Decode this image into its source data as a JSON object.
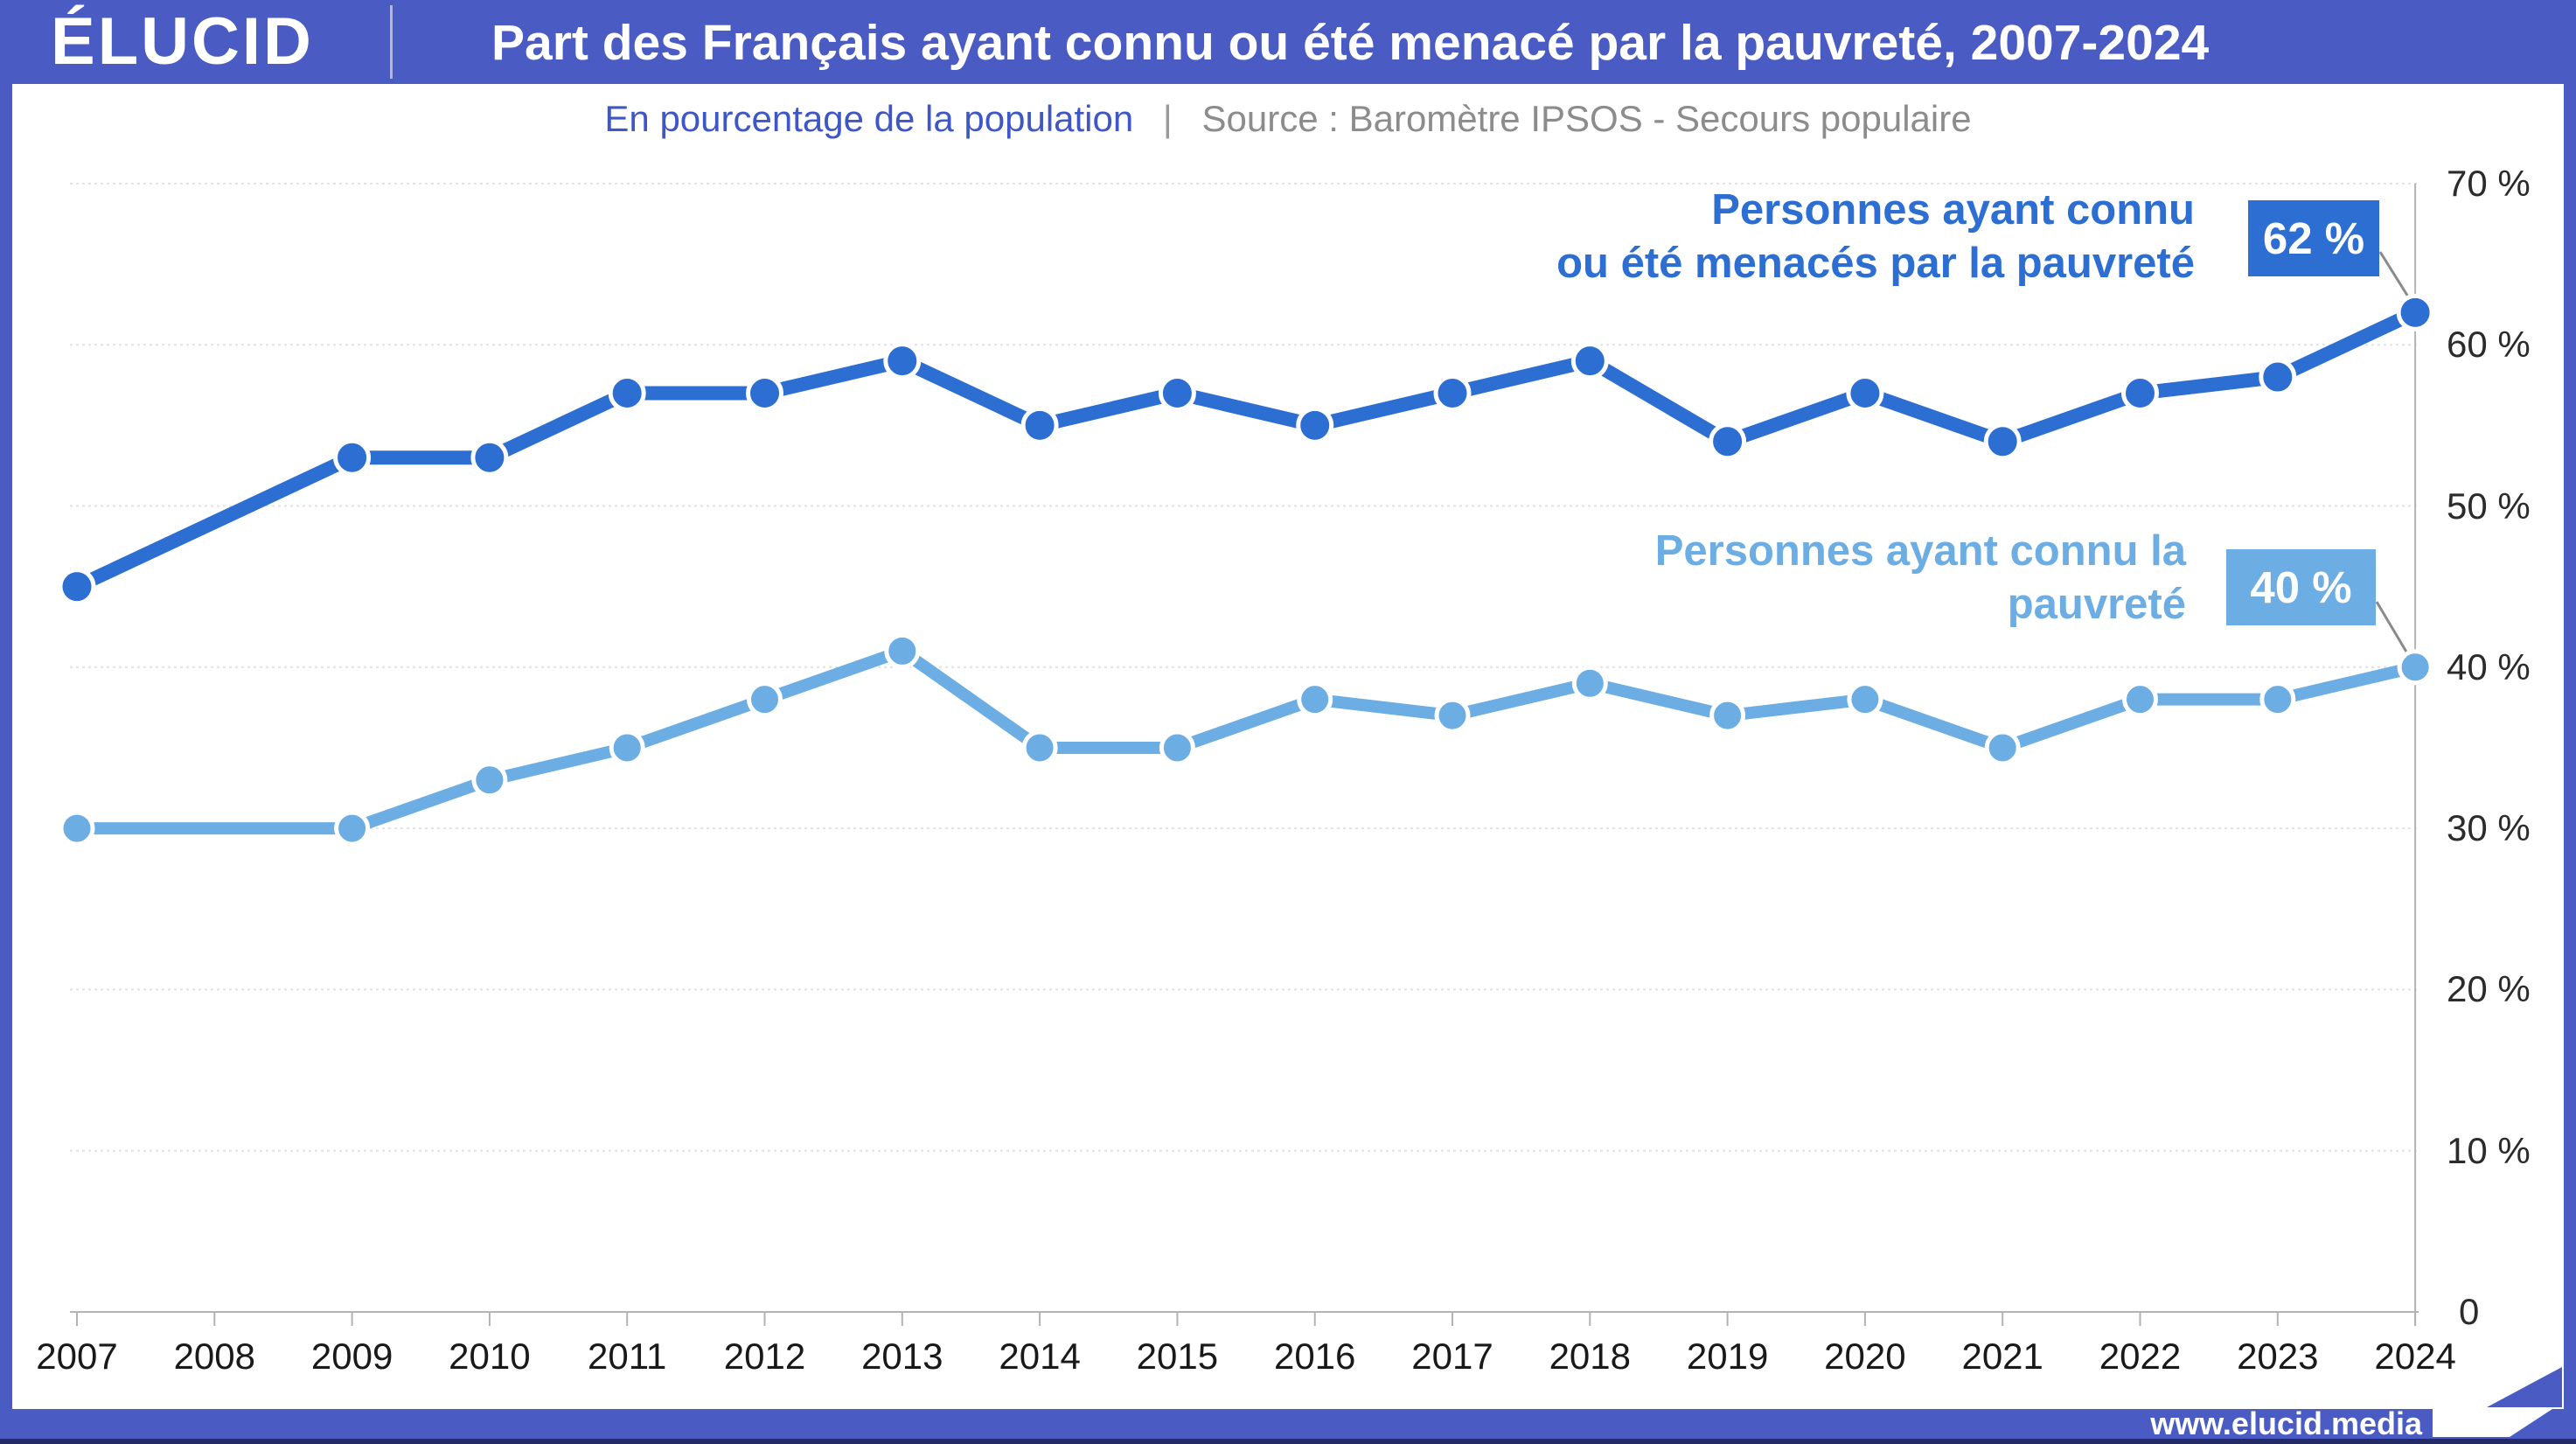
{
  "header": {
    "logo_text": "ÉLUCID",
    "title": "Part des Français ayant connu ou été menacé par la pauvreté, 2007-2024"
  },
  "subtitle": {
    "unit_label": "En pourcentage de la population",
    "separator": "|",
    "source_label": "Source : Baromètre IPSOS - Secours populaire"
  },
  "annotations": {
    "dark": {
      "line1": "Personnes ayant connu",
      "line2": "ou été menacés par la pauvreté",
      "badge": "62 %"
    },
    "light": {
      "line1": "Personnes ayant connu la",
      "line2": "pauvreté",
      "badge": "40 %"
    }
  },
  "footer": {
    "site": "www.elucid.media"
  },
  "colors": {
    "header_blue": "#4a5cc3",
    "dark_series": "#2c6ed2",
    "light_series": "#6cade4",
    "grid": "#e2e2e2",
    "axis_line": "#b3b3b3",
    "connector": "#8a8a8a",
    "y_label": "#2b2b2b",
    "x_label": "#191919",
    "footer_navy": "#232a66"
  },
  "chart_data": {
    "type": "line",
    "title": "Part des Français ayant connu ou été menacé par la pauvreté, 2007-2024",
    "unit": "En pourcentage de la population",
    "source": "Baromètre IPSOS - Secours populaire",
    "x_ticks": [
      2007,
      2008,
      2009,
      2010,
      2011,
      2012,
      2013,
      2014,
      2015,
      2016,
      2017,
      2018,
      2019,
      2020,
      2021,
      2022,
      2023,
      2024
    ],
    "ylim": [
      0,
      70
    ],
    "yticks": [
      {
        "value": 70,
        "label": "70 %"
      },
      {
        "value": 60,
        "label": "60 %"
      },
      {
        "value": 50,
        "label": "50 %"
      },
      {
        "value": 40,
        "label": "40 %"
      },
      {
        "value": 30,
        "label": "30 %"
      },
      {
        "value": 20,
        "label": "20 %"
      },
      {
        "value": 10,
        "label": "10 %"
      },
      {
        "value": 0,
        "label": "0"
      }
    ],
    "legend_position": "inline-right",
    "grid": true,
    "series": [
      {
        "name": "Personnes ayant connu ou été menacés par la pauvreté",
        "color": "#2c6ed2",
        "end_badge": "62 %",
        "points": [
          [
            2007,
            45
          ],
          [
            2009,
            53
          ],
          [
            2010,
            53
          ],
          [
            2011,
            57
          ],
          [
            2012,
            57
          ],
          [
            2013,
            59
          ],
          [
            2014,
            55
          ],
          [
            2015,
            57
          ],
          [
            2016,
            55
          ],
          [
            2017,
            57
          ],
          [
            2018,
            59
          ],
          [
            2019,
            54
          ],
          [
            2020,
            57
          ],
          [
            2021,
            54
          ],
          [
            2022,
            57
          ],
          [
            2023,
            58
          ],
          [
            2024,
            62
          ]
        ]
      },
      {
        "name": "Personnes ayant connu la pauvreté",
        "color": "#6cade4",
        "end_badge": "40 %",
        "points": [
          [
            2007,
            30
          ],
          [
            2009,
            30
          ],
          [
            2010,
            33
          ],
          [
            2011,
            35
          ],
          [
            2012,
            38
          ],
          [
            2013,
            41
          ],
          [
            2014,
            35
          ],
          [
            2015,
            35
          ],
          [
            2016,
            38
          ],
          [
            2017,
            37
          ],
          [
            2018,
            39
          ],
          [
            2019,
            37
          ],
          [
            2020,
            38
          ],
          [
            2021,
            35
          ],
          [
            2022,
            38
          ],
          [
            2023,
            38
          ],
          [
            2024,
            40
          ]
        ]
      }
    ]
  }
}
